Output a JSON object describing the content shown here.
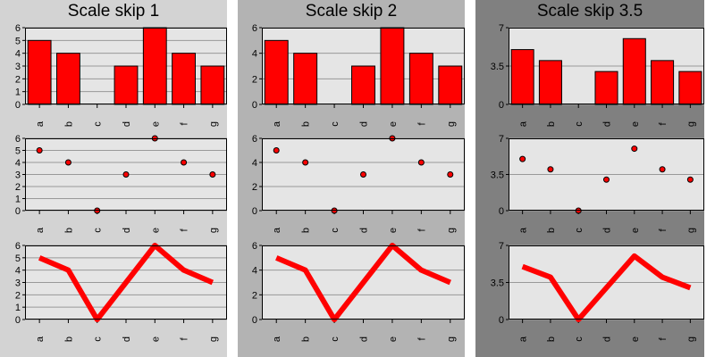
{
  "chart_data": [
    {
      "title": "Scale skip 1",
      "background": "#d3d3d3",
      "plot_background": "#e5e5e5",
      "series_color": "#ff0000",
      "categories": [
        "a",
        "b",
        "c",
        "d",
        "e",
        "f",
        "g"
      ],
      "values": [
        5,
        4,
        0,
        3,
        6,
        4,
        3
      ],
      "ylim": [
        0,
        6
      ],
      "yticks": [
        "0",
        "1",
        "2",
        "3",
        "4",
        "5",
        "6"
      ],
      "grid": true,
      "charts": [
        {
          "type": "bar"
        },
        {
          "type": "scatter"
        },
        {
          "type": "line"
        }
      ]
    },
    {
      "title": "Scale skip 2",
      "background": "#b3b3b3",
      "plot_background": "#e5e5e5",
      "series_color": "#ff0000",
      "categories": [
        "a",
        "b",
        "c",
        "d",
        "e",
        "f",
        "g"
      ],
      "values": [
        5,
        4,
        0,
        3,
        6,
        4,
        3
      ],
      "ylim": [
        0,
        6
      ],
      "yticks": [
        "0",
        "2",
        "4",
        "6"
      ],
      "grid": true,
      "charts": [
        {
          "type": "bar"
        },
        {
          "type": "scatter"
        },
        {
          "type": "line"
        }
      ]
    },
    {
      "title": "Scale skip 3.5",
      "background": "#808080",
      "plot_background": "#e5e5e5",
      "series_color": "#ff0000",
      "categories": [
        "a",
        "b",
        "c",
        "d",
        "e",
        "f",
        "g"
      ],
      "values": [
        5,
        4,
        0,
        3,
        6,
        4,
        3
      ],
      "ylim": [
        0,
        7
      ],
      "yticks": [
        "0",
        "3.5",
        "7"
      ],
      "grid": true,
      "charts": [
        {
          "type": "bar"
        },
        {
          "type": "scatter"
        },
        {
          "type": "line"
        }
      ]
    }
  ]
}
